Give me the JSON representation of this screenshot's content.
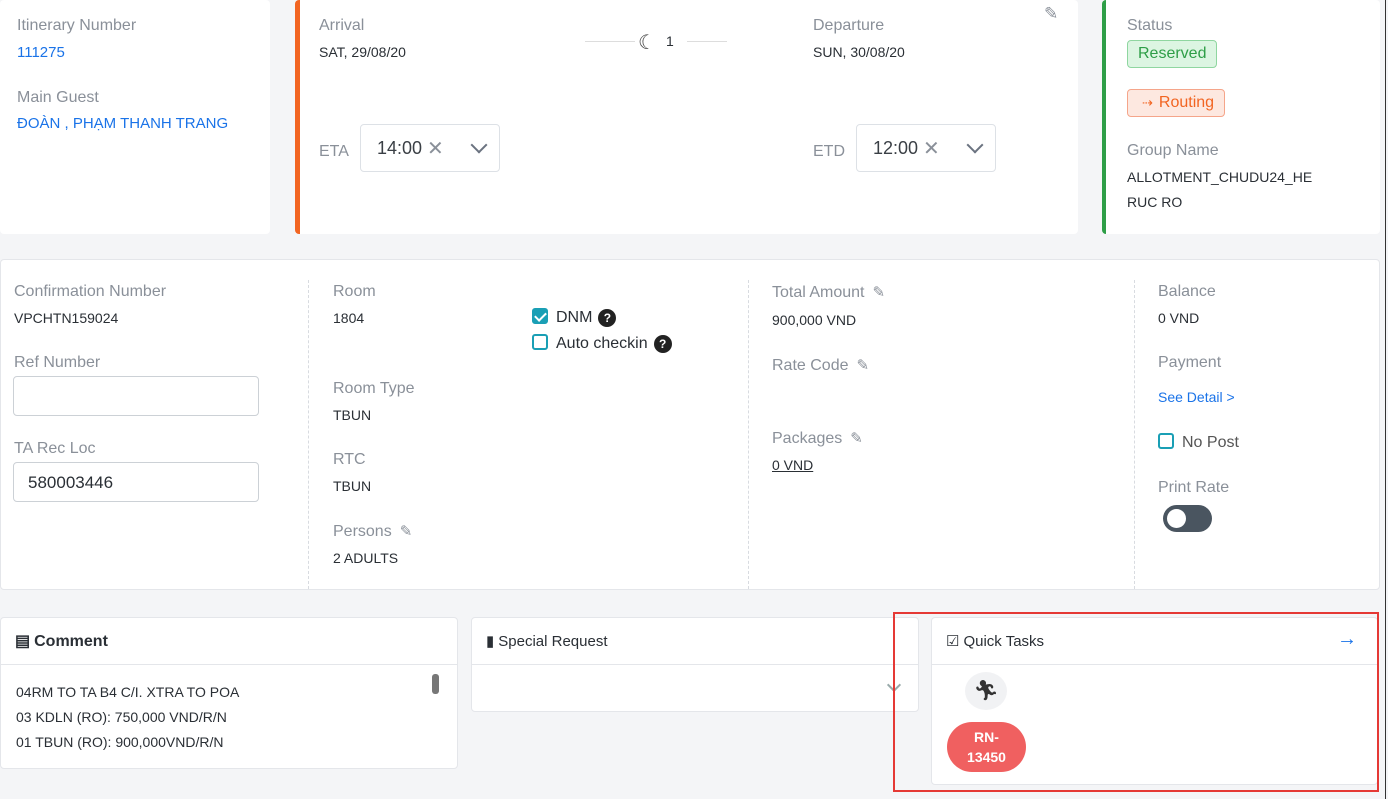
{
  "itinerary": {
    "label": "Itinerary Number",
    "value": "111275",
    "guest_label": "Main Guest",
    "guest": "ĐOÀN , PHẠM THANH TRANG"
  },
  "stay": {
    "arrival_label": "Arrival",
    "arrival": "SAT, 29/08/20",
    "nights": "1",
    "departure_label": "Departure",
    "departure": "SUN, 30/08/20",
    "eta_label": "ETA",
    "eta": "14:00",
    "etd_label": "ETD",
    "etd": "12:00",
    "clear": "✕"
  },
  "status": {
    "label": "Status",
    "value": "Reserved",
    "routing": "Routing",
    "group_label": "Group Name",
    "group_line1": "ALLOTMENT_CHUDU24_HE",
    "group_line2": "RUC RO"
  },
  "details": {
    "confirmation_label": "Confirmation Number",
    "confirmation": "VPCHTN159024",
    "ref_label": "Ref Number",
    "ref_value": "",
    "ta_label": "TA Rec Loc",
    "ta_value": "580003446",
    "room_label": "Room",
    "room": "1804",
    "dnm": "DNM",
    "auto_checkin": "Auto checkin",
    "room_type_label": "Room Type",
    "room_type": "TBUN",
    "rtc_label": "RTC",
    "rtc": "TBUN",
    "persons_label": "Persons",
    "persons": "2 ADULTS",
    "total_label": "Total Amount",
    "total": "900,000 VND",
    "rate_label": "Rate Code",
    "packages_label": "Packages",
    "packages": "0 VND",
    "balance_label": "Balance",
    "balance": "0 VND",
    "payment_label": "Payment",
    "see_detail": "See Detail >",
    "no_post": "No Post",
    "print_rate": "Print Rate"
  },
  "checkbox_state": {
    "dnm": true,
    "auto_checkin": false,
    "no_post": false,
    "print_rate": false
  },
  "comment": {
    "title": "Comment",
    "lines": [
      "04RM TO TA B4 C/I. XTRA TO POA",
      "03 KDLN (RO): 750,000 VND/R/N",
      "01 TBUN (RO): 900,000VND/R/N"
    ]
  },
  "special_request": {
    "title": "Special Request"
  },
  "quick_tasks": {
    "title": "Quick Tasks",
    "task_line1": "RN-",
    "task_line2": "13450"
  },
  "colors": {
    "arrival_border": "#f26522",
    "status_border": "#2e9e47",
    "task": "#f06060",
    "highlight": "#e53935",
    "link": "#1a73e8"
  }
}
